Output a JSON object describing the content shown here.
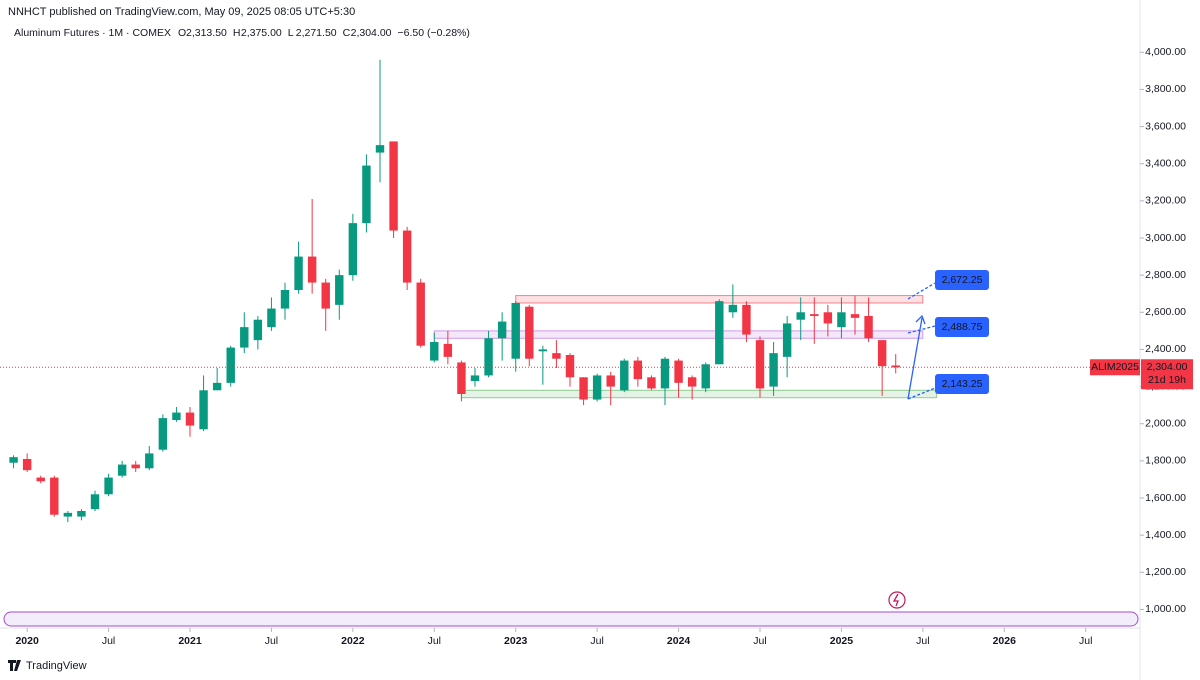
{
  "header": {
    "published": "NNHCT published on TradingView.com, May 09, 2025 08:05 UTC+5:30",
    "symbol": "Aluminum Futures · 1M · COMEX",
    "ohlc": [
      [
        "O",
        "2,313.50"
      ],
      [
        "H",
        "2,375.00"
      ],
      [
        "L",
        "2,271.50"
      ],
      [
        "C",
        "2,304.00"
      ]
    ],
    "change": "−6.50 (−0.28%)"
  },
  "footer": {
    "logo": "TradingView"
  },
  "chart_data": {
    "type": "candlestick",
    "up_color": "#089981",
    "down_color": "#f23645",
    "x": [
      "2019-12",
      "2020-01",
      "2020-02",
      "2020-03",
      "2020-04",
      "2020-05",
      "2020-06",
      "2020-07",
      "2020-08",
      "2020-09",
      "2020-10",
      "2020-11",
      "2020-12",
      "2021-01",
      "2021-02",
      "2021-03",
      "2021-04",
      "2021-05",
      "2021-06",
      "2021-07",
      "2021-08",
      "2021-09",
      "2021-10",
      "2021-11",
      "2021-12",
      "2022-01",
      "2022-02",
      "2022-03",
      "2022-04",
      "2022-05",
      "2022-06",
      "2022-07",
      "2022-08",
      "2022-09",
      "2022-10",
      "2022-11",
      "2022-12",
      "2023-01",
      "2023-02",
      "2023-03",
      "2023-04",
      "2023-05",
      "2023-06",
      "2023-07",
      "2023-08",
      "2023-09",
      "2023-10",
      "2023-11",
      "2023-12",
      "2024-01",
      "2024-02",
      "2024-03",
      "2024-04",
      "2024-05",
      "2024-06",
      "2024-07",
      "2024-08",
      "2024-09",
      "2024-10",
      "2024-11",
      "2024-12",
      "2025-01",
      "2025-02",
      "2025-03",
      "2025-04",
      "2025-05"
    ],
    "open": [
      1790,
      1810,
      1710,
      1710,
      1500,
      1500,
      1540,
      1620,
      1720,
      1780,
      1760,
      1860,
      2020,
      2060,
      1970,
      2180,
      2220,
      2410,
      2450,
      2520,
      2620,
      2720,
      2900,
      2760,
      2640,
      2800,
      3080,
      3460,
      3520,
      3040,
      2760,
      2340,
      2430,
      2330,
      2230,
      2260,
      2460,
      2350,
      2630,
      2390,
      2380,
      2370,
      2250,
      2130,
      2260,
      2180,
      2340,
      2250,
      2190,
      2340,
      2250,
      2190,
      2320,
      2600,
      2640,
      2450,
      2200,
      2360,
      2560,
      2590,
      2600,
      2520,
      2590,
      2580,
      2450,
      2313.5
    ],
    "high": [
      1830,
      1840,
      1720,
      1720,
      1530,
      1540,
      1640,
      1730,
      1800,
      1800,
      1880,
      2050,
      2090,
      2090,
      2260,
      2300,
      2420,
      2600,
      2580,
      2680,
      2760,
      2980,
      3210,
      2780,
      2830,
      3130,
      3450,
      3960,
      3520,
      3060,
      2780,
      2490,
      2500,
      2340,
      2300,
      2500,
      2600,
      2660,
      2640,
      2420,
      2450,
      2380,
      2250,
      2270,
      2280,
      2350,
      2360,
      2260,
      2360,
      2350,
      2260,
      2330,
      2670,
      2750,
      2660,
      2470,
      2440,
      2580,
      2680,
      2680,
      2640,
      2680,
      2690,
      2680,
      2450,
      2375
    ],
    "low": [
      1760,
      1740,
      1680,
      1500,
      1470,
      1480,
      1530,
      1610,
      1710,
      1740,
      1750,
      1850,
      2010,
      1930,
      1960,
      2180,
      2200,
      2380,
      2400,
      2500,
      2560,
      2700,
      2700,
      2500,
      2560,
      2770,
      3030,
      3300,
      3000,
      2720,
      2410,
      2330,
      2320,
      2120,
      2200,
      2250,
      2340,
      2280,
      2310,
      2210,
      2300,
      2200,
      2100,
      2120,
      2100,
      2170,
      2200,
      2180,
      2100,
      2140,
      2130,
      2170,
      2320,
      2570,
      2440,
      2140,
      2150,
      2250,
      2450,
      2430,
      2470,
      2460,
      2480,
      2440,
      2150,
      2271.5
    ],
    "close": [
      1820,
      1750,
      1690,
      1510,
      1520,
      1530,
      1620,
      1710,
      1780,
      1760,
      1840,
      2030,
      2060,
      1990,
      2180,
      2220,
      2410,
      2520,
      2560,
      2620,
      2720,
      2900,
      2760,
      2620,
      2800,
      3080,
      3390,
      3500,
      3040,
      2760,
      2420,
      2440,
      2360,
      2160,
      2260,
      2460,
      2550,
      2650,
      2350,
      2400,
      2350,
      2250,
      2130,
      2260,
      2200,
      2340,
      2240,
      2190,
      2350,
      2220,
      2200,
      2320,
      2660,
      2640,
      2480,
      2190,
      2380,
      2540,
      2600,
      2580,
      2540,
      2600,
      2570,
      2460,
      2310,
      2304
    ],
    "xlim": [
      "2019-11",
      "2026-11"
    ],
    "xticks": [
      {
        "value": "2020-01",
        "label": "2020"
      },
      {
        "value": "2020-07",
        "label": "Jul"
      },
      {
        "value": "2021-01",
        "label": "2021"
      },
      {
        "value": "2021-07",
        "label": "Jul"
      },
      {
        "value": "2022-01",
        "label": "2022"
      },
      {
        "value": "2022-07",
        "label": "Jul"
      },
      {
        "value": "2023-01",
        "label": "2023"
      },
      {
        "value": "2023-07",
        "label": "Jul"
      },
      {
        "value": "2024-01",
        "label": "2024"
      },
      {
        "value": "2024-07",
        "label": "Jul"
      },
      {
        "value": "2025-01",
        "label": "2025"
      },
      {
        "value": "2025-07",
        "label": "Jul"
      },
      {
        "value": "2026-01",
        "label": "2026"
      },
      {
        "value": "2026-07",
        "label": "Jul"
      }
    ],
    "ylim": [
      900,
      4120
    ],
    "yticks": [
      {
        "value": 1000,
        "label": "1,000.00"
      },
      {
        "value": 1200,
        "label": "1,200.00"
      },
      {
        "value": 1400,
        "label": "1,400.00"
      },
      {
        "value": 1600,
        "label": "1,600.00"
      },
      {
        "value": 1800,
        "label": "1,800.00"
      },
      {
        "value": 2000,
        "label": "2,000.00"
      },
      {
        "value": 2200,
        "label": "2,200.00"
      },
      {
        "value": 2400,
        "label": "2,400.00"
      },
      {
        "value": 2600,
        "label": "2,600.00"
      },
      {
        "value": 2800,
        "label": "2,800.00"
      },
      {
        "value": 3000,
        "label": "3,000.00"
      },
      {
        "value": 3200,
        "label": "3,200.00"
      },
      {
        "value": 3400,
        "label": "3,400.00"
      },
      {
        "value": 3600,
        "label": "3,600.00"
      },
      {
        "value": 3800,
        "label": "3,800.00"
      },
      {
        "value": 4000,
        "label": "4,000.00"
      }
    ],
    "zones": [
      {
        "value": 2672.25,
        "value_label": "2,672.25",
        "bottom": 2650,
        "top": 2690,
        "start": "2023-01",
        "end": "2025-07",
        "color": "#f23645"
      },
      {
        "value": 2488.75,
        "value_label": "2,488.75",
        "bottom": 2460,
        "top": 2500,
        "start": "2022-07",
        "end": "2025-07",
        "color": "#b45fd6"
      },
      {
        "value": 2143.25,
        "value_label": "2,143.25",
        "bottom": 2140,
        "top": 2180,
        "start": "2022-09",
        "end": "2025-08",
        "color": "#4caf50"
      }
    ],
    "last_price": {
      "symbol": "ALIM2025",
      "value": 2304,
      "value_label": "2,304.00",
      "countdown": "21d 19h"
    }
  }
}
